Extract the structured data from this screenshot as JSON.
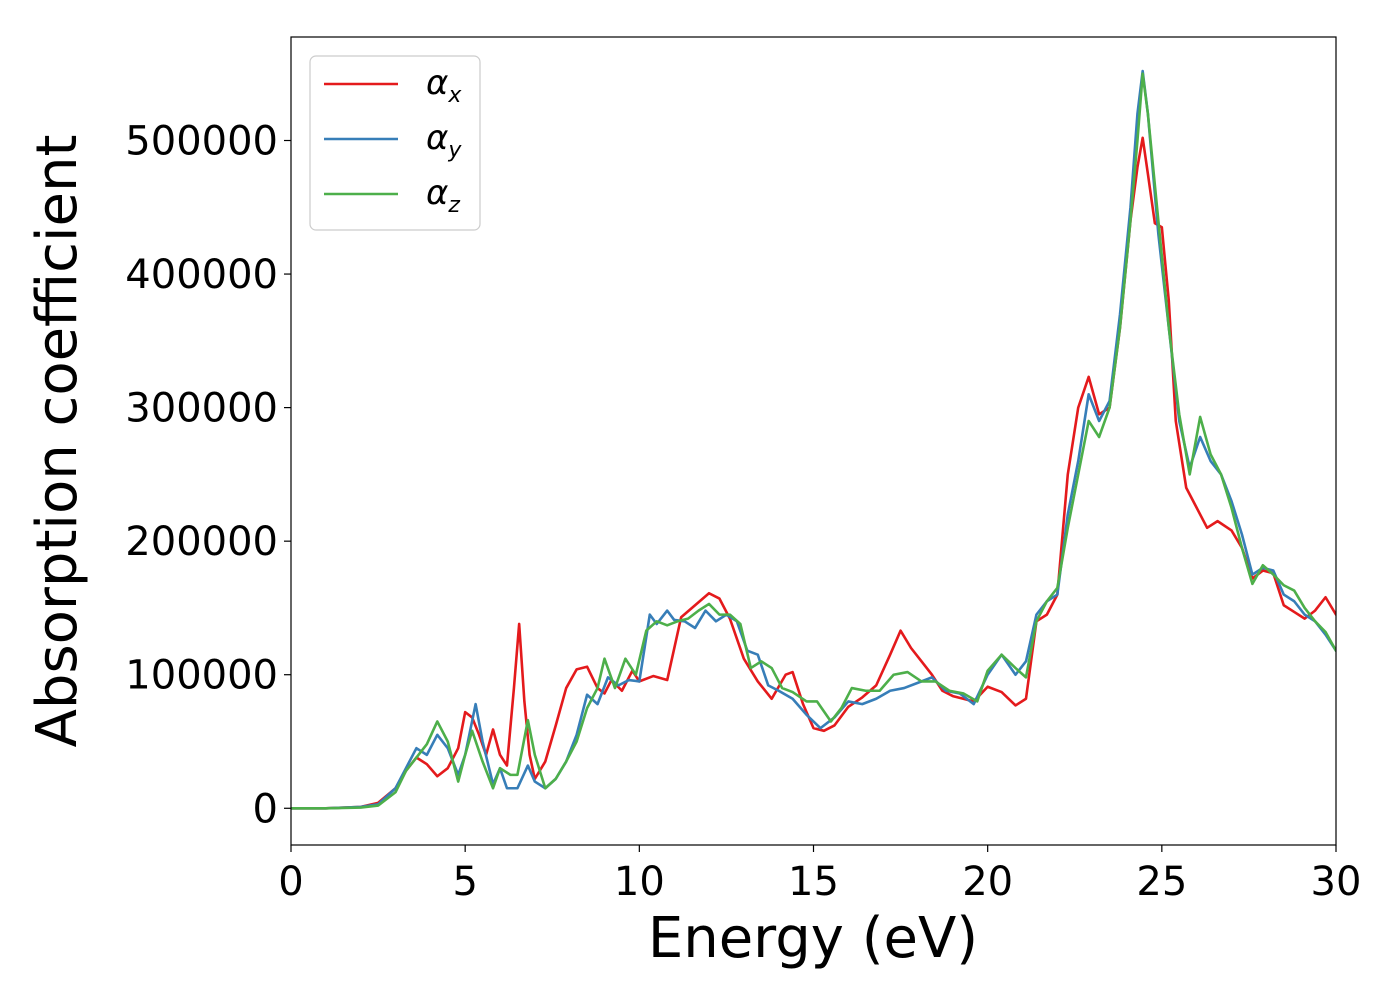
{
  "chart_data": {
    "type": "line",
    "xlabel": "Energy (eV)",
    "ylabel": "Absorption coefficient",
    "xlim": [
      0,
      30
    ],
    "ylim": [
      -27500,
      577500
    ],
    "xticks": [
      0,
      5,
      10,
      15,
      20,
      25,
      30
    ],
    "xtick_labels": [
      "0",
      "5",
      "10",
      "15",
      "20",
      "25",
      "30"
    ],
    "yticks": [
      0,
      100000,
      200000,
      300000,
      400000,
      500000
    ],
    "ytick_labels": [
      "0",
      "100000",
      "200000",
      "300000",
      "400000",
      "500000"
    ],
    "grid": false,
    "legend_position": "top-left",
    "series": [
      {
        "name": "α",
        "subscript": "x",
        "color": "#e41a1c",
        "x": [
          0,
          1,
          2,
          2.5,
          3,
          3.3,
          3.6,
          3.9,
          4.2,
          4.5,
          4.8,
          5.0,
          5.2,
          5.4,
          5.6,
          5.8,
          6.0,
          6.2,
          6.4,
          6.55,
          6.7,
          6.85,
          7.0,
          7.3,
          7.6,
          7.9,
          8.2,
          8.5,
          8.8,
          9.0,
          9.2,
          9.5,
          9.8,
          10.0,
          10.4,
          10.8,
          11.2,
          11.6,
          12.0,
          12.3,
          12.6,
          13.0,
          13.4,
          13.8,
          14.2,
          14.4,
          14.7,
          15.0,
          15.3,
          15.6,
          16.0,
          16.4,
          16.8,
          17.2,
          17.5,
          17.8,
          18.1,
          18.4,
          18.7,
          19.0,
          19.3,
          19.6,
          20.0,
          20.4,
          20.8,
          21.1,
          21.4,
          21.7,
          22.0,
          22.3,
          22.6,
          22.9,
          23.2,
          23.5,
          23.8,
          24.1,
          24.3,
          24.45,
          24.6,
          24.8,
          25.0,
          25.2,
          25.4,
          25.7,
          26.0,
          26.3,
          26.6,
          27.0,
          27.3,
          27.6,
          27.9,
          28.2,
          28.5,
          28.8,
          29.1,
          29.4,
          29.7,
          30.0
        ],
        "y": [
          0,
          0,
          1000,
          4000,
          15000,
          28000,
          38000,
          33000,
          24000,
          30000,
          45000,
          72000,
          68000,
          55000,
          40000,
          59000,
          40000,
          32000,
          90000,
          138000,
          80000,
          40000,
          22000,
          35000,
          62000,
          90000,
          104000,
          106000,
          90000,
          86000,
          96000,
          88000,
          103000,
          95000,
          99000,
          96000,
          143000,
          152000,
          161000,
          157000,
          142000,
          112000,
          95000,
          82000,
          100000,
          102000,
          78000,
          60000,
          58000,
          62000,
          76000,
          83000,
          92000,
          115000,
          133000,
          120000,
          110000,
          100000,
          88000,
          84000,
          82000,
          80000,
          91000,
          87000,
          77000,
          82000,
          140000,
          145000,
          160000,
          250000,
          300000,
          323000,
          295000,
          300000,
          360000,
          440000,
          480000,
          502000,
          475000,
          438000,
          435000,
          380000,
          290000,
          240000,
          225000,
          210000,
          215000,
          208000,
          195000,
          172000,
          178000,
          176000,
          152000,
          147000,
          142000,
          148000,
          158000,
          145000
        ]
      },
      {
        "name": "α",
        "subscript": "y",
        "color": "#377eb8",
        "x": [
          0,
          1,
          2,
          2.5,
          3,
          3.3,
          3.6,
          3.9,
          4.2,
          4.5,
          4.8,
          5.0,
          5.3,
          5.5,
          5.8,
          6.0,
          6.2,
          6.5,
          6.8,
          7.0,
          7.3,
          7.6,
          7.9,
          8.2,
          8.5,
          8.8,
          9.1,
          9.4,
          9.7,
          10.0,
          10.3,
          10.5,
          10.8,
          11.0,
          11.3,
          11.6,
          11.9,
          12.2,
          12.5,
          12.8,
          13.1,
          13.4,
          13.7,
          14.0,
          14.4,
          14.8,
          15.2,
          15.6,
          16.0,
          16.4,
          16.8,
          17.2,
          17.6,
          18.0,
          18.4,
          18.8,
          19.2,
          19.6,
          20.0,
          20.4,
          20.8,
          21.1,
          21.4,
          21.7,
          22.0,
          22.3,
          22.6,
          22.9,
          23.2,
          23.5,
          23.8,
          24.1,
          24.3,
          24.45,
          24.6,
          24.9,
          25.2,
          25.5,
          25.8,
          26.1,
          26.4,
          26.7,
          27.0,
          27.3,
          27.6,
          27.9,
          28.2,
          28.5,
          28.8,
          29.1,
          29.4,
          29.7,
          30.0
        ],
        "y": [
          0,
          0,
          1000,
          3000,
          15000,
          30000,
          45000,
          40000,
          55000,
          45000,
          25000,
          40000,
          78000,
          50000,
          18000,
          30000,
          15000,
          15000,
          32000,
          20000,
          15000,
          22000,
          35000,
          55000,
          85000,
          78000,
          98000,
          92000,
          96000,
          95000,
          145000,
          138000,
          148000,
          141000,
          140000,
          135000,
          148000,
          140000,
          145000,
          140000,
          118000,
          115000,
          92000,
          88000,
          82000,
          70000,
          60000,
          68000,
          80000,
          78000,
          82000,
          88000,
          90000,
          94000,
          98000,
          88000,
          86000,
          78000,
          100000,
          115000,
          100000,
          110000,
          145000,
          155000,
          160000,
          220000,
          260000,
          310000,
          290000,
          305000,
          370000,
          450000,
          520000,
          552000,
          520000,
          430000,
          360000,
          290000,
          255000,
          278000,
          260000,
          250000,
          230000,
          205000,
          175000,
          180000,
          178000,
          160000,
          155000,
          145000,
          140000,
          130000,
          118000
        ]
      },
      {
        "name": "α",
        "subscript": "z",
        "color": "#4daf4a",
        "x": [
          0,
          1,
          2,
          2.5,
          3,
          3.3,
          3.6,
          3.9,
          4.2,
          4.5,
          4.8,
          5.0,
          5.2,
          5.5,
          5.8,
          6.0,
          6.3,
          6.5,
          6.8,
          7.0,
          7.3,
          7.6,
          7.9,
          8.2,
          8.5,
          8.8,
          9.0,
          9.3,
          9.6,
          9.9,
          10.2,
          10.5,
          10.8,
          11.1,
          11.4,
          11.7,
          12.0,
          12.3,
          12.6,
          12.9,
          13.2,
          13.5,
          13.8,
          14.1,
          14.4,
          14.8,
          15.1,
          15.5,
          15.8,
          16.1,
          16.5,
          16.9,
          17.3,
          17.7,
          18.1,
          18.5,
          18.9,
          19.3,
          19.7,
          20.0,
          20.4,
          20.8,
          21.1,
          21.4,
          21.7,
          22.0,
          22.3,
          22.6,
          22.9,
          23.2,
          23.5,
          23.8,
          24.1,
          24.3,
          24.45,
          24.6,
          24.9,
          25.2,
          25.5,
          25.8,
          26.1,
          26.4,
          26.7,
          27.0,
          27.3,
          27.6,
          27.9,
          28.2,
          28.5,
          28.8,
          29.1,
          29.4,
          29.7,
          30.0
        ],
        "y": [
          0,
          0,
          500,
          2000,
          12000,
          28000,
          38000,
          48000,
          65000,
          50000,
          20000,
          40000,
          58000,
          35000,
          15000,
          30000,
          25000,
          25000,
          66000,
          40000,
          15000,
          22000,
          35000,
          50000,
          75000,
          90000,
          112000,
          90000,
          112000,
          100000,
          133000,
          140000,
          137000,
          140000,
          142000,
          148000,
          153000,
          145000,
          145000,
          138000,
          105000,
          110000,
          105000,
          90000,
          87000,
          80000,
          80000,
          65000,
          75000,
          90000,
          88000,
          88000,
          100000,
          102000,
          95000,
          95000,
          88000,
          86000,
          80000,
          103000,
          115000,
          105000,
          98000,
          140000,
          155000,
          165000,
          210000,
          250000,
          290000,
          278000,
          300000,
          360000,
          440000,
          500000,
          550000,
          520000,
          440000,
          360000,
          295000,
          250000,
          293000,
          265000,
          250000,
          225000,
          195000,
          168000,
          182000,
          175000,
          167000,
          163000,
          150000,
          140000,
          132000,
          118000
        ]
      }
    ]
  }
}
